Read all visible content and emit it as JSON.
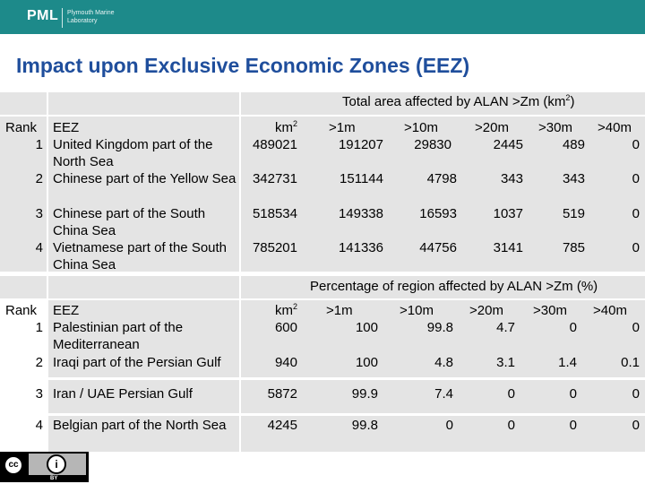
{
  "header": {
    "logo_text": "PML",
    "logo_subtext": "Plymouth Marine Laboratory",
    "brand_color": "#1d8a8a"
  },
  "slide_title": "Impact upon Exclusive Economic Zones (EEZ)",
  "title_color": "#1f4e9c",
  "table1": {
    "caption": "Total area affected by ALAN >Zm (km",
    "caption_sup": "2",
    "caption_close": ")",
    "headers": {
      "rank": "Rank",
      "eez": "EEZ",
      "km": "km",
      "km_sup": "2",
      "c1": ">1m",
      "c2": ">10m",
      "c3": ">20m",
      "c4": ">30m",
      "c5": ">40m"
    },
    "rows": [
      {
        "rank": "1",
        "eez": "United Kingdom part of the North Sea",
        "km": "489021",
        "c1": "191207",
        "c2": "29830",
        "c3": "2445",
        "c4": "489",
        "c5": "0"
      },
      {
        "rank": "2",
        "eez": "Chinese part of the Yellow Sea",
        "km": "342731",
        "c1": "151144",
        "c2": "4798",
        "c3": "343",
        "c4": "343",
        "c5": "0"
      },
      {
        "rank": "3",
        "eez": "Chinese part of the South China Sea",
        "km": "518534",
        "c1": "149338",
        "c2": "16593",
        "c3": "1037",
        "c4": "519",
        "c5": "0"
      },
      {
        "rank": "4",
        "eez": "Vietnamese part of the South China Sea",
        "km": "785201",
        "c1": "141336",
        "c2": "44756",
        "c3": "3141",
        "c4": "785",
        "c5": "0"
      }
    ]
  },
  "table2": {
    "caption": "Percentage of region affected by ALAN >Zm (%)",
    "headers": {
      "rank": "Rank",
      "eez": "EEZ",
      "km": "km",
      "km_sup": "2",
      "c1": ">1m",
      "c2": ">10m",
      "c3": ">20m",
      "c4": ">30m",
      "c5": ">40m"
    },
    "rows": [
      {
        "rank": "1",
        "eez": "Palestinian part of the Mediterranean",
        "km": "600",
        "c1": "100",
        "c2": "99.8",
        "c3": "4.7",
        "c4": "0",
        "c5": "0"
      },
      {
        "rank": "2",
        "eez": "Iraqi part of the Persian Gulf",
        "km": "940",
        "c1": "100",
        "c2": "4.8",
        "c3": "3.1",
        "c4": "1.4",
        "c5": "0.1"
      },
      {
        "rank": "3",
        "eez": "Iran / UAE Persian Gulf",
        "km": "5872",
        "c1": "99.9",
        "c2": "7.4",
        "c3": "0",
        "c4": "0",
        "c5": "0"
      },
      {
        "rank": "4",
        "eez": "Belgian part of the North Sea",
        "km": "4245",
        "c1": "99.8",
        "c2": "0",
        "c3": "0",
        "c4": "0",
        "c5": "0"
      }
    ]
  },
  "license": {
    "cc_text": "cc",
    "by_symbol": "i",
    "by_text": "BY"
  }
}
